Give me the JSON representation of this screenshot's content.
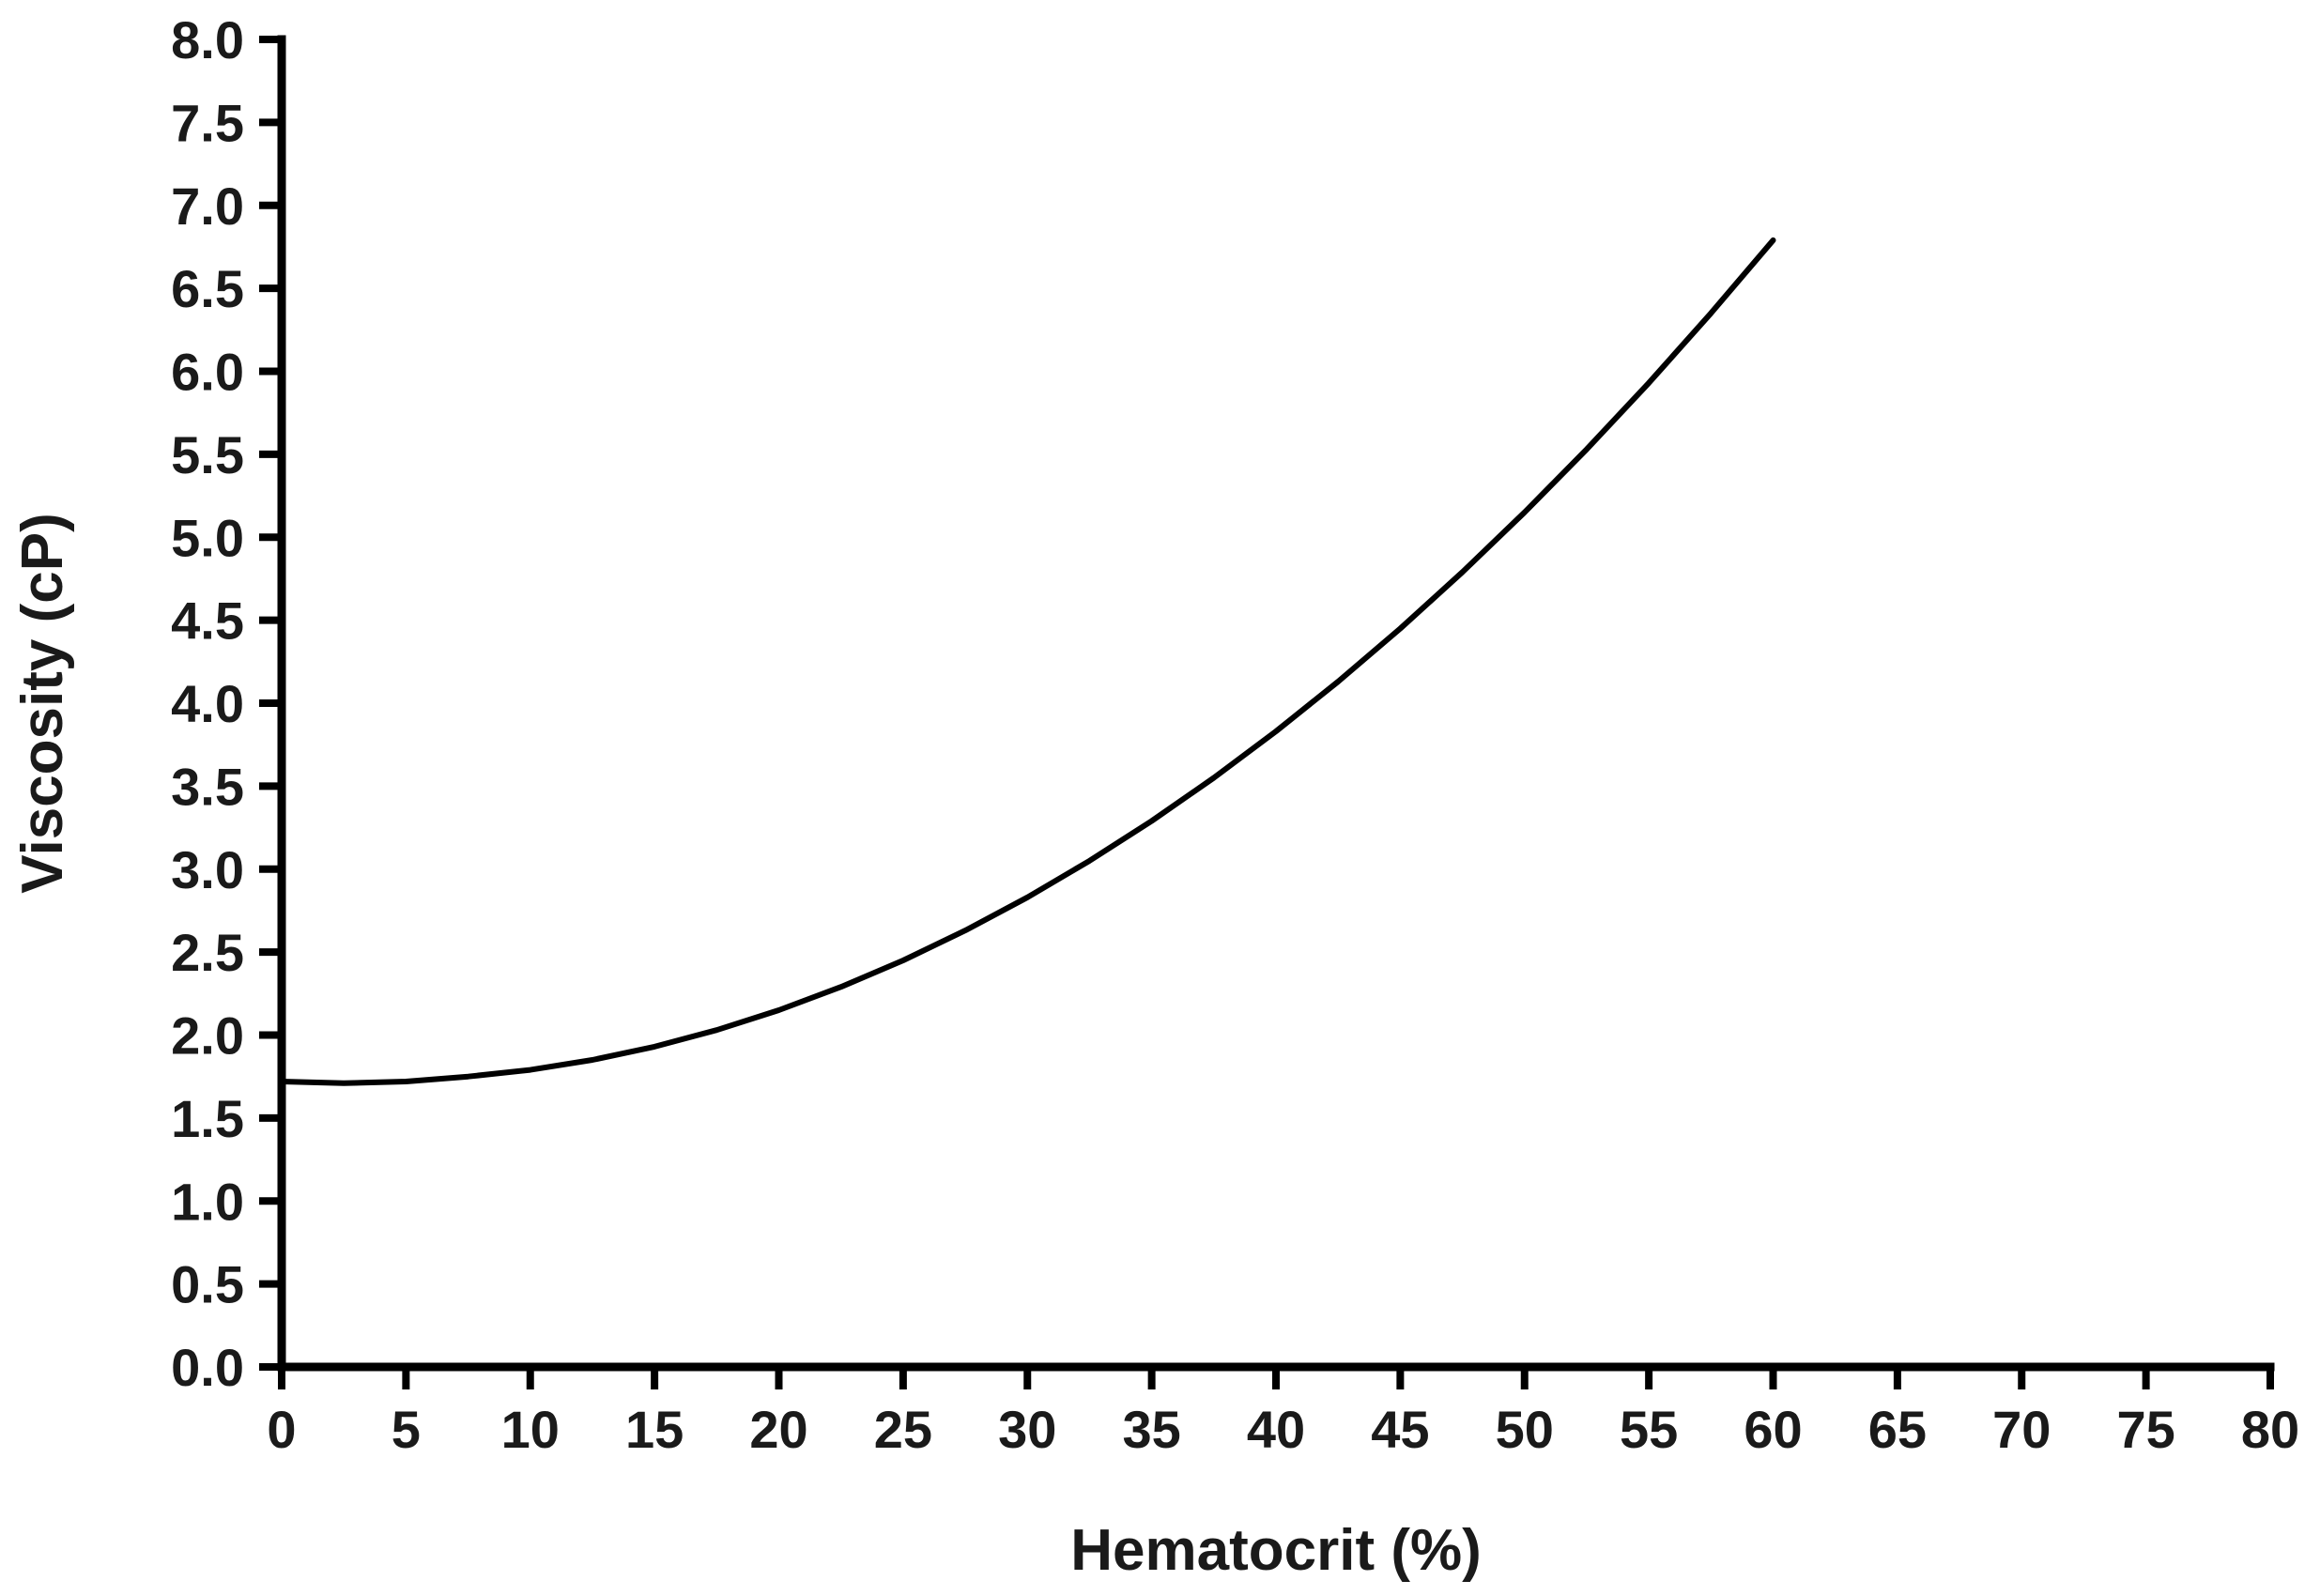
{
  "chart_data": {
    "type": "line",
    "title": "",
    "xlabel": "Hematocrit (%)",
    "ylabel": "Viscosity (cP)",
    "xlim": [
      0,
      80
    ],
    "ylim": [
      0,
      8
    ],
    "x_ticks": [
      "0",
      "5",
      "10",
      "15",
      "20",
      "25",
      "30",
      "35",
      "40",
      "45",
      "50",
      "55",
      "60",
      "65",
      "70",
      "75",
      "80"
    ],
    "y_ticks": [
      "0.0",
      "0.5",
      "1.0",
      "1.5",
      "2.0",
      "2.5",
      "3.0",
      "3.5",
      "4.0",
      "4.5",
      "5.0",
      "5.5",
      "6.0",
      "6.5",
      "7.0",
      "7.5",
      "8.0"
    ],
    "grid": false,
    "legend": "none",
    "series": [
      {
        "x": [
          0,
          2.5,
          5,
          7.5,
          10,
          12.5,
          15,
          17.5,
          20,
          22.5,
          25,
          27.5,
          30,
          32.5,
          35,
          37.5,
          40,
          42.5,
          45,
          47.5,
          50,
          52.5,
          55,
          57.5,
          60
        ],
        "y": [
          1.72,
          1.71,
          1.72,
          1.75,
          1.79,
          1.85,
          1.93,
          2.03,
          2.15,
          2.29,
          2.45,
          2.63,
          2.83,
          3.05,
          3.29,
          3.55,
          3.83,
          4.13,
          4.45,
          4.79,
          5.15,
          5.53,
          5.93,
          6.35,
          6.79
        ]
      }
    ]
  }
}
